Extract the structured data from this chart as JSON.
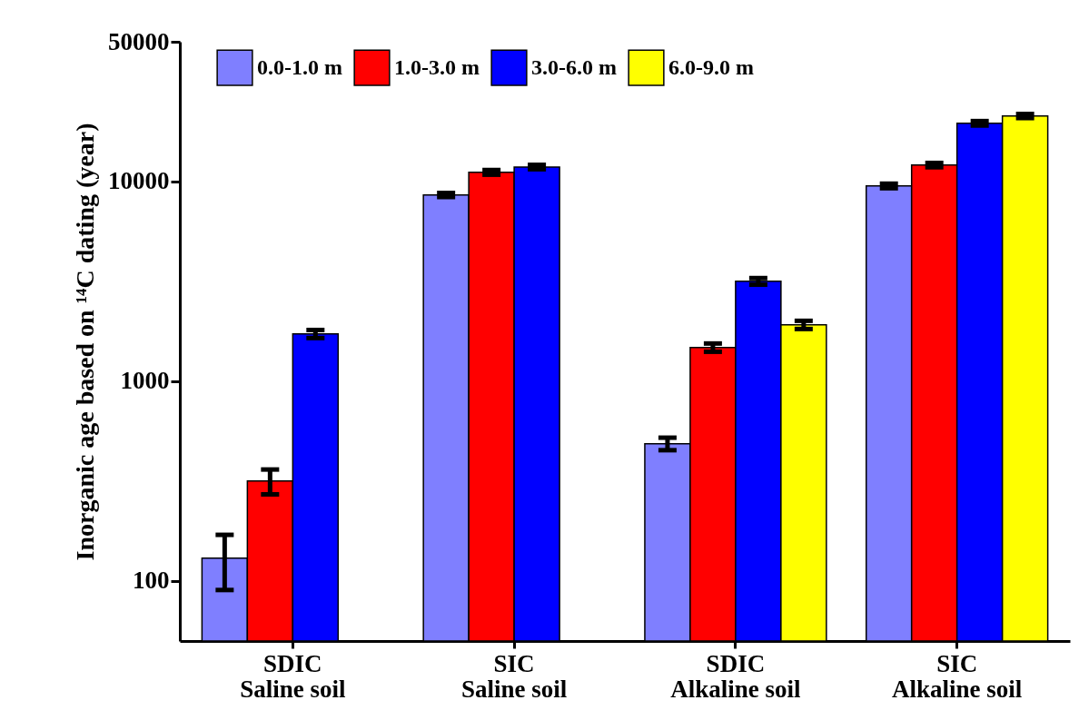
{
  "chart_data": {
    "type": "bar",
    "ylabel": "Inorganic age based on ¹⁴C dating (year)",
    "categories": [
      "SDIC\nSaline soil",
      "SIC\nSaline soil",
      "SDIC\nAlkaline soil",
      "SIC\nAlkaline soil"
    ],
    "series": [
      {
        "name": "0.0-1.0 m",
        "color": "#7f7fff",
        "values": [
          130,
          8550,
          486,
          9490
        ],
        "errors": [
          40,
          200,
          35,
          250
        ]
      },
      {
        "name": "1.0-3.0 m",
        "color": "#ff0000",
        "values": [
          316,
          11100,
          1473,
          12070
        ],
        "errors": [
          45,
          300,
          70,
          300
        ]
      },
      {
        "name": "3.0-6.0 m",
        "color": "#0000ff",
        "values": [
          1723,
          11800,
          3160,
          19540
        ],
        "errors": [
          80,
          300,
          120,
          500
        ]
      },
      {
        "name": "6.0-9.0 m",
        "color": "#ffff00",
        "values": [
          null,
          null,
          1914,
          21250
        ],
        "errors": [
          null,
          null,
          90,
          500
        ]
      }
    ],
    "log": true,
    "ylim": [
      50,
      50000
    ],
    "yticks": [
      100,
      1000,
      10000,
      50000
    ],
    "grid": false,
    "legend": "top"
  }
}
